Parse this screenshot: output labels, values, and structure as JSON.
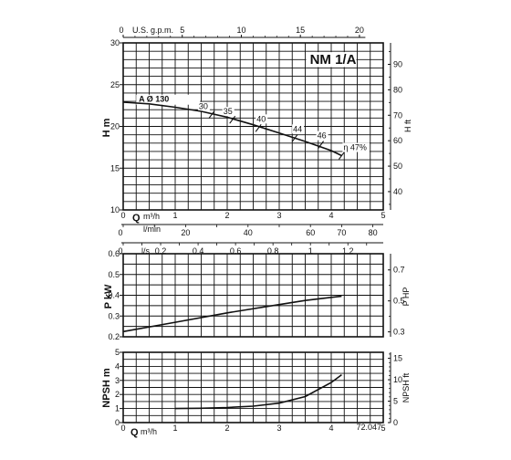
{
  "chart_data": [
    {
      "type": "line",
      "panel": "head",
      "model_label": "NM 1/A",
      "ylabel": "H m",
      "ylabel_right": "H ft",
      "x_unit": "m³/h",
      "xlim": [
        0,
        5
      ],
      "ylim": [
        10,
        30
      ],
      "x_ticks": [
        "0",
        "1",
        "2",
        "3",
        "4",
        "5"
      ],
      "y_ticks": [
        "10",
        "15",
        "20",
        "25",
        "30"
      ],
      "y_ticks_right": [
        "40",
        "50",
        "60",
        "70",
        "80",
        "90"
      ],
      "top_axis": {
        "label": "U.S. g.p.m.",
        "ticks": [
          "0",
          "5",
          "10",
          "15",
          "20"
        ]
      },
      "secondary_axes": [
        {
          "label": "Q",
          "unit": "l/min",
          "ticks": [
            "0",
            "20",
            "40",
            "60",
            "80"
          ],
          "right_tick": "70"
        },
        {
          "label": "",
          "unit": "l/s",
          "ticks": [
            "0",
            "0.2",
            "0.4",
            "0.6",
            "0.8",
            "1",
            "1.2"
          ]
        }
      ],
      "curve_label": "A Ø 130",
      "efficiency_labels": [
        "30",
        "35",
        "40",
        "44",
        "46",
        "η 47%"
      ],
      "efficiency_points": [
        {
          "x": 1.7,
          "y": 21.4
        },
        {
          "x": 2.1,
          "y": 20.8
        },
        {
          "x": 2.6,
          "y": 19.8
        },
        {
          "x": 3.3,
          "y": 18.6
        },
        {
          "x": 3.8,
          "y": 17.8
        },
        {
          "x": 4.2,
          "y": 16.5
        }
      ],
      "series": [
        {
          "values": [
            {
              "x": 0,
              "y": 22.9
            },
            {
              "x": 0.5,
              "y": 22.7
            },
            {
              "x": 1,
              "y": 22.3
            },
            {
              "x": 1.5,
              "y": 21.8
            },
            {
              "x": 2,
              "y": 21.1
            },
            {
              "x": 2.5,
              "y": 20.2
            },
            {
              "x": 3,
              "y": 19.2
            },
            {
              "x": 3.5,
              "y": 18.2
            },
            {
              "x": 4,
              "y": 17.1
            },
            {
              "x": 4.2,
              "y": 16.5
            }
          ]
        }
      ],
      "grid": true
    },
    {
      "type": "line",
      "panel": "power",
      "ylabel": "P kW",
      "ylabel_right": "P HP",
      "xlim": [
        0,
        5
      ],
      "ylim": [
        0.2,
        0.6
      ],
      "y_ticks": [
        "0.2",
        "0.3",
        "0.4",
        "0.5",
        "0.6"
      ],
      "y_ticks_right": [
        "0.3",
        "0.5",
        "0.7"
      ],
      "series": [
        {
          "values": [
            {
              "x": 0,
              "y": 0.225
            },
            {
              "x": 1,
              "y": 0.27
            },
            {
              "x": 2,
              "y": 0.315
            },
            {
              "x": 3,
              "y": 0.355
            },
            {
              "x": 3.5,
              "y": 0.375
            },
            {
              "x": 4,
              "y": 0.39
            },
            {
              "x": 4.2,
              "y": 0.395
            }
          ]
        }
      ],
      "grid": true
    },
    {
      "type": "line",
      "panel": "npsh",
      "ylabel": "NPSH m",
      "ylabel_right": "NPSH ft",
      "x_label": "Q",
      "x_unit": "m³/h",
      "code": "72.047",
      "xlim": [
        0,
        5
      ],
      "ylim": [
        0,
        5
      ],
      "x_ticks": [
        "0",
        "1",
        "2",
        "3",
        "4",
        "5"
      ],
      "y_ticks": [
        "0",
        "1",
        "2",
        "3",
        "4",
        "5"
      ],
      "y_ticks_right": [
        "0",
        "5",
        "10",
        "15"
      ],
      "series": [
        {
          "values": [
            {
              "x": 1,
              "y": 1.0
            },
            {
              "x": 1.5,
              "y": 1.02
            },
            {
              "x": 2,
              "y": 1.07
            },
            {
              "x": 2.5,
              "y": 1.17
            },
            {
              "x": 3,
              "y": 1.38
            },
            {
              "x": 3.5,
              "y": 1.85
            },
            {
              "x": 4,
              "y": 2.85
            },
            {
              "x": 4.2,
              "y": 3.4
            }
          ]
        }
      ],
      "grid": true
    }
  ]
}
